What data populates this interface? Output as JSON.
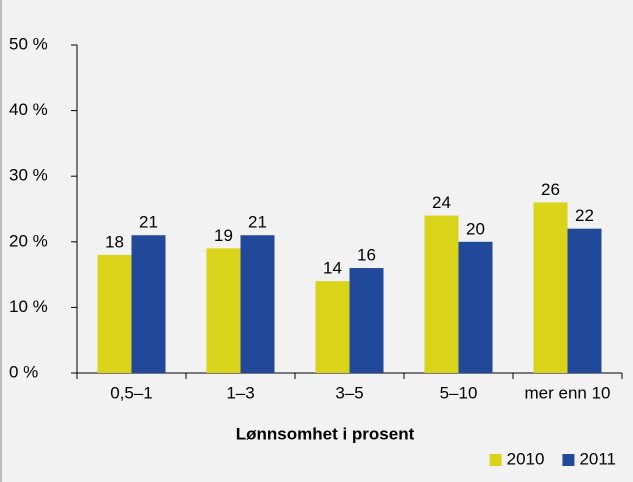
{
  "chart_data": {
    "type": "bar",
    "x_label": "Lønnsomhet i prosent",
    "categories": [
      "0,5–1",
      "1–3",
      "3–5",
      "5–10",
      "mer enn 10"
    ],
    "series": [
      {
        "name": "2010",
        "color": "#d9d31a",
        "values": [
          18,
          19,
          14,
          24,
          26
        ]
      },
      {
        "name": "2011",
        "color": "#22489a",
        "values": [
          21,
          21,
          16,
          20,
          22
        ]
      }
    ],
    "ylim": [
      0,
      50
    ],
    "yticks": [
      {
        "value": 0,
        "label": "0 %"
      },
      {
        "value": 10,
        "label": "10 %"
      },
      {
        "value": 20,
        "label": "20 %"
      },
      {
        "value": 30,
        "label": "30 %"
      },
      {
        "value": 40,
        "label": "40 %"
      },
      {
        "value": 50,
        "label": "50 %"
      }
    ],
    "legend": "bottom-right"
  }
}
